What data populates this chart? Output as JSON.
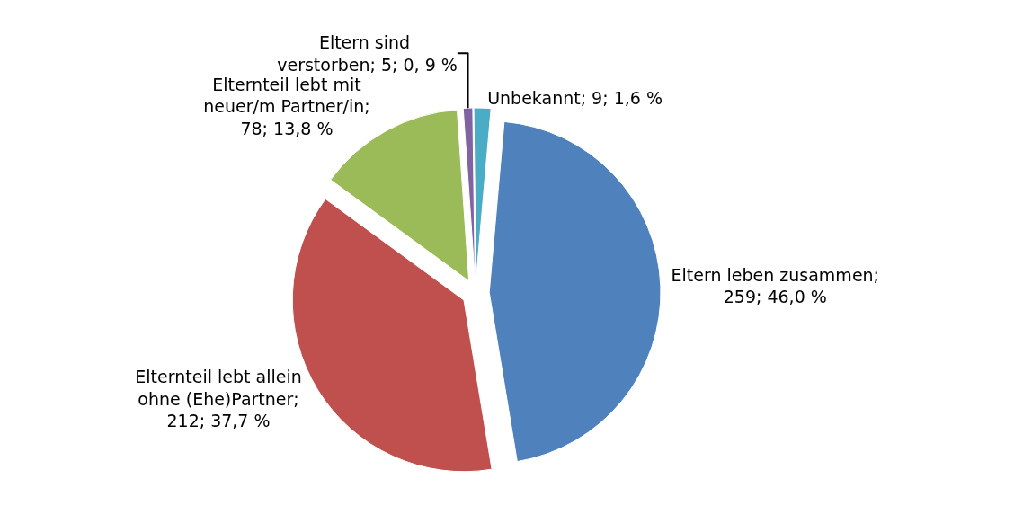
{
  "chart_data": {
    "type": "pie",
    "categories": [
      "Eltern leben zusammen",
      "Elternteil lebt allein ohne (Ehe)Partner",
      "Elternteil lebt mit neuer/m Partner/in",
      "Eltern sind  verstorben",
      "Unbekannt"
    ],
    "values": [
      259,
      212,
      78,
      5,
      9
    ],
    "value_labels": [
      "; 259; 46,0 %",
      "; 212; 37,7 %",
      "; 78; 13,8 %",
      "; 5; 0, 9 %",
      "; 9; 1,6 %"
    ],
    "colors": [
      "#4f81bd",
      "#c0504d",
      "#9bbb59",
      "#8064a2",
      "#4bacc6"
    ],
    "legend": false
  }
}
